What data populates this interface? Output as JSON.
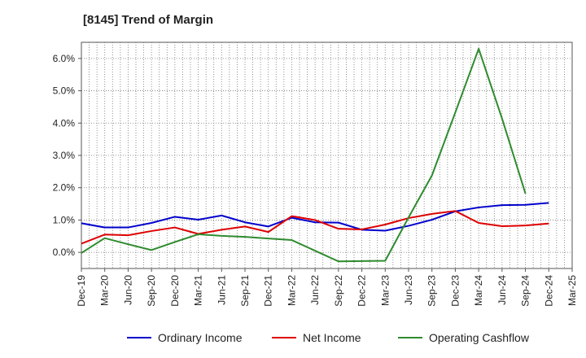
{
  "chart_data": {
    "type": "line",
    "title": "[8145]  Trend of Margin",
    "xlabel": "",
    "ylabel": "",
    "categories": [
      "Dec-19",
      "Mar-20",
      "Jun-20",
      "Sep-20",
      "Dec-20",
      "Mar-21",
      "Jun-21",
      "Sep-21",
      "Dec-21",
      "Mar-22",
      "Jun-22",
      "Sep-22",
      "Dec-22",
      "Mar-23",
      "Jun-23",
      "Sep-23",
      "Dec-23",
      "Mar-24",
      "Jun-24",
      "Sep-24",
      "Dec-24",
      "Mar-25"
    ],
    "ylim": [
      -0.5,
      6.5
    ],
    "yticks": [
      0,
      1,
      2,
      3,
      4,
      5,
      6
    ],
    "ytick_labels": [
      "0.0%",
      "1.0%",
      "2.0%",
      "3.0%",
      "4.0%",
      "5.0%",
      "6.0%"
    ],
    "grid": true,
    "legend_position": "bottom",
    "series": [
      {
        "name": "Ordinary Income",
        "color": "#0000cc",
        "values": [
          0.9,
          0.77,
          0.77,
          0.91,
          1.1,
          1.01,
          1.14,
          0.93,
          0.8,
          1.07,
          0.93,
          0.92,
          0.7,
          0.67,
          0.82,
          1.01,
          1.27,
          1.39,
          1.46,
          1.47,
          1.53,
          null
        ]
      },
      {
        "name": "Net Income",
        "color": "#dd0000",
        "values": [
          0.27,
          0.55,
          0.53,
          0.66,
          0.77,
          0.57,
          0.7,
          0.8,
          0.63,
          1.12,
          1.0,
          0.73,
          0.71,
          0.86,
          1.06,
          1.19,
          1.28,
          0.91,
          0.81,
          0.83,
          0.89,
          null
        ]
      },
      {
        "name": "Operating Cashflow",
        "color": "#2e8b2e",
        "values": [
          -0.02,
          0.44,
          0.25,
          0.07,
          0.32,
          0.56,
          0.51,
          0.48,
          0.43,
          0.38,
          0.05,
          -0.28,
          -0.27,
          -0.26,
          1.08,
          2.38,
          4.33,
          6.3,
          4.14,
          1.82,
          null,
          null
        ]
      }
    ]
  }
}
